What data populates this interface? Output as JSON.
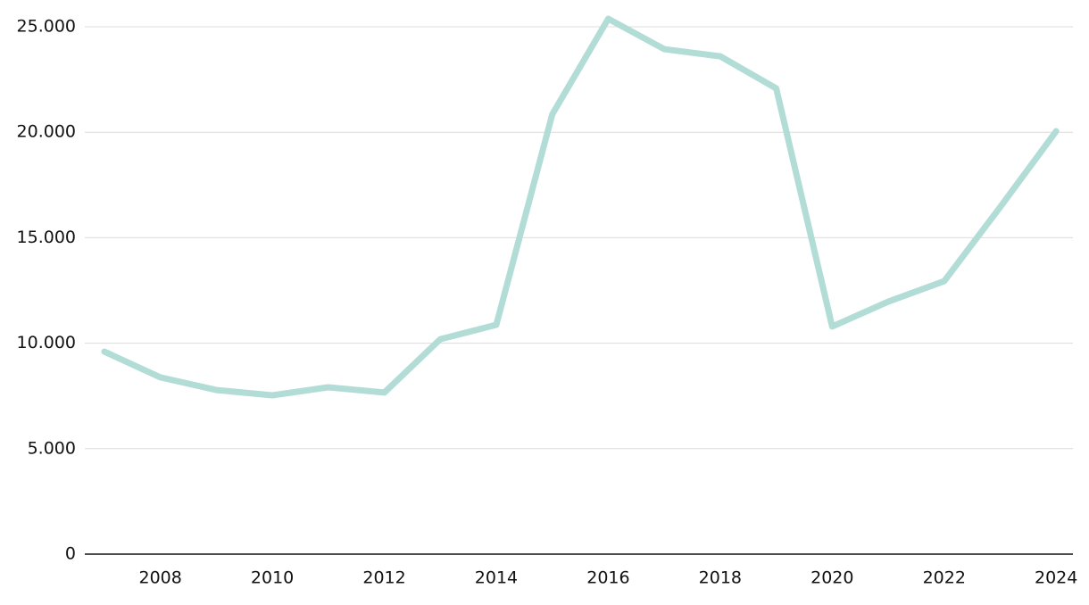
{
  "chart_data": {
    "type": "line",
    "x": [
      2007,
      2008,
      2009,
      2010,
      2011,
      2012,
      2013,
      2014,
      2015,
      2016,
      2017,
      2018,
      2019,
      2020,
      2021,
      2022,
      2023,
      2024
    ],
    "series": [
      {
        "color": "#b2dcd6",
        "values": [
          9600,
          8380,
          7780,
          7530,
          7910,
          7660,
          10190,
          10870,
          20850,
          25380,
          23940,
          23600,
          22080,
          10790,
          11970,
          12940,
          16450,
          20050
        ]
      }
    ],
    "xlim": [
      2006.65,
      2024.3
    ],
    "xticks": [
      2008,
      2010,
      2012,
      2014,
      2016,
      2018,
      2020,
      2022,
      2024
    ],
    "ylim": [
      0,
      25000
    ],
    "yticks": [
      0,
      {
        "value": 5000,
        "label": "5.000"
      },
      {
        "value": 10000,
        "label": "10.000"
      },
      {
        "value": 15000,
        "label": "15.000"
      },
      {
        "value": 20000,
        "label": "20.000"
      },
      {
        "value": 25000,
        "label": "25.000"
      }
    ],
    "grid": true
  }
}
